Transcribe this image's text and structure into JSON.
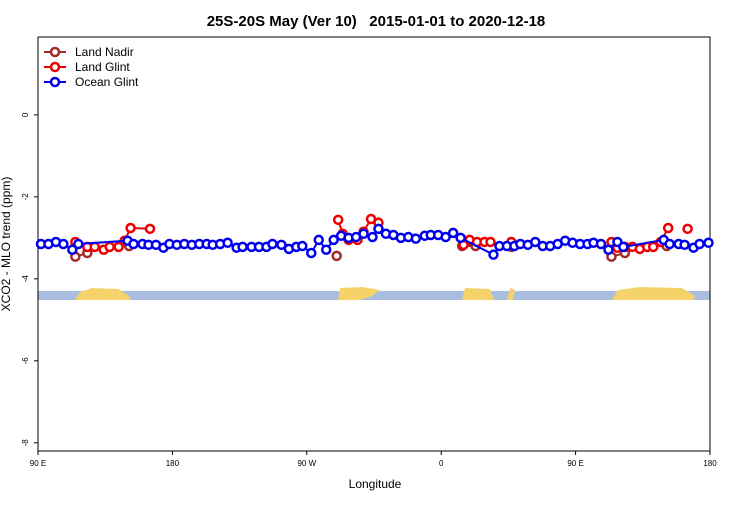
{
  "chart_data": {
    "type": "line",
    "title": "25S-20S May (Ver 10)   2015-01-01 to 2020-12-18",
    "x_label": "Longitude",
    "y_label": "XCO2 - MLO trend (ppm)",
    "xlim": [
      90,
      540
    ],
    "ylim": [
      -8.2,
      1.9
    ],
    "xticks": [
      {
        "value": 90,
        "label": "90 E"
      },
      180,
      {
        "value": 270,
        "label": "90 W"
      },
      {
        "value": 360,
        "label": "0"
      },
      {
        "value": 450,
        "label": "90 E"
      },
      {
        "value": 540,
        "label": "180"
      }
    ],
    "yticks": [
      -8,
      -6,
      -4,
      -2,
      0
    ],
    "legend": "top-left",
    "series": [
      {
        "name": "Land Nadir",
        "color": "#a52a2a",
        "x": [
          115,
          123,
          null,
          151,
          null,
          290,
          null,
          374,
          383,
          null,
          407,
          null,
          474,
          483,
          null,
          511
        ],
        "values": [
          -3.46,
          -3.37,
          null,
          -3.2,
          null,
          -3.44,
          null,
          -3.2,
          -3.2,
          null,
          -3.22,
          null,
          -3.46,
          -3.37,
          null,
          -3.2
        ]
      },
      {
        "name": "Land Glint",
        "color": "#ee0000",
        "x": [
          115,
          123,
          128,
          134,
          138,
          144,
          148,
          152,
          165,
          null,
          291,
          294,
          298,
          304,
          308,
          313,
          318,
          null,
          375,
          379,
          384,
          389,
          393,
          null,
          407,
          null,
          474,
          478,
          483,
          488,
          493,
          498,
          502,
          507,
          512,
          null,
          525
        ],
        "values": [
          -3.1,
          -3.22,
          -3.22,
          -3.29,
          -3.22,
          -3.22,
          -3.07,
          -2.76,
          -2.78,
          null,
          -2.56,
          -2.9,
          -3.05,
          -3.05,
          -2.85,
          -2.54,
          -2.63,
          null,
          -3.17,
          -3.05,
          -3.1,
          -3.1,
          -3.1,
          null,
          -3.1,
          null,
          -3.1,
          -3.24,
          -3.22,
          -3.22,
          -3.27,
          -3.22,
          -3.22,
          -3.1,
          -2.76,
          null,
          -2.78
        ]
      },
      {
        "name": "Ocean Glint",
        "color": "#0000ee",
        "x": [
          92,
          97,
          102,
          107,
          113,
          117,
          150,
          154,
          160,
          164,
          169,
          174,
          178,
          183,
          188,
          193,
          198,
          203,
          207,
          212,
          217,
          223,
          227,
          233,
          238,
          243,
          247,
          253,
          258,
          263,
          267,
          273,
          278,
          283,
          288,
          293,
          298,
          303,
          308,
          314,
          318,
          323,
          328,
          333,
          338,
          343,
          349,
          353,
          358,
          363,
          368,
          373,
          395,
          399,
          404,
          409,
          413,
          418,
          423,
          428,
          433,
          438,
          443,
          448,
          453,
          458,
          462,
          467,
          472,
          478,
          482,
          509,
          513,
          519,
          523,
          529,
          533,
          539
        ],
        "values": [
          -3.15,
          -3.15,
          -3.1,
          -3.15,
          -3.29,
          -3.15,
          -3.07,
          -3.15,
          -3.15,
          -3.17,
          -3.17,
          -3.24,
          -3.15,
          -3.17,
          -3.15,
          -3.17,
          -3.15,
          -3.15,
          -3.17,
          -3.15,
          -3.12,
          -3.24,
          -3.22,
          -3.22,
          -3.22,
          -3.22,
          -3.15,
          -3.17,
          -3.27,
          -3.22,
          -3.2,
          -3.37,
          -3.05,
          -3.29,
          -3.05,
          -2.95,
          -3.0,
          -2.98,
          -2.9,
          -2.98,
          -2.78,
          -2.9,
          -2.93,
          -3.0,
          -2.98,
          -3.02,
          -2.95,
          -2.93,
          -2.93,
          -2.98,
          -2.88,
          -3.0,
          -3.41,
          -3.2,
          -3.2,
          -3.2,
          -3.15,
          -3.17,
          -3.1,
          -3.2,
          -3.2,
          -3.15,
          -3.07,
          -3.12,
          -3.15,
          -3.15,
          -3.12,
          -3.15,
          -3.29,
          -3.1,
          -3.22,
          -3.05,
          -3.15,
          -3.15,
          -3.17,
          -3.24,
          -3.15,
          -3.12
        ]
      }
    ]
  }
}
